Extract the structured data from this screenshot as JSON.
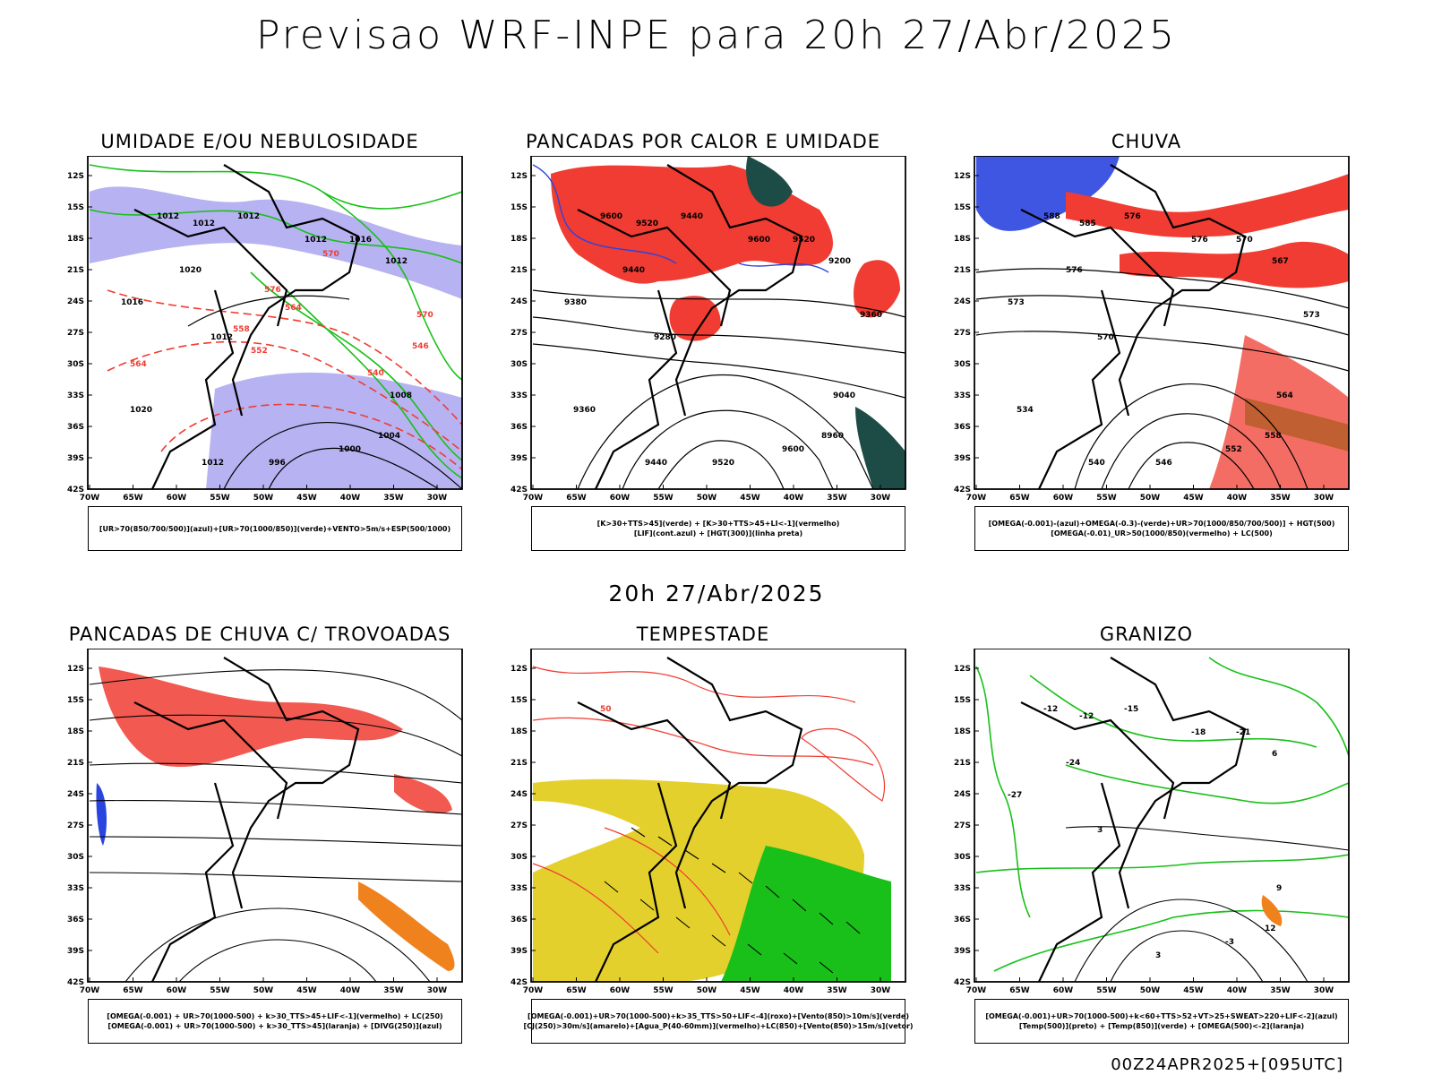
{
  "header": {
    "title": "Previsao WRF-INPE  para 20h 27/Abr/2025"
  },
  "middle": {
    "subtitle": "20h 27/Abr/2025"
  },
  "footer": {
    "run": "00Z24APR2025+[095UTC]"
  },
  "axes": {
    "lat": [
      "12S",
      "15S",
      "18S",
      "21S",
      "24S",
      "27S",
      "30S",
      "33S",
      "36S",
      "39S",
      "42S"
    ],
    "lon": [
      "70W",
      "65W",
      "60W",
      "55W",
      "50W",
      "45W",
      "40W",
      "35W",
      "30W"
    ]
  },
  "colors": {
    "blue": "#2a44e0",
    "green": "#19c019",
    "red": "#f03c32",
    "lavender": "#aaa4ee",
    "darkteal": "#1d4c47",
    "yellow": "#e4d02c",
    "orange": "#f0821e",
    "black": "#000000"
  },
  "panels": [
    {
      "id": "umidade",
      "title": "UMIDADE E/OU NEBULOSIDADE",
      "legend": [
        "[UR>70(850/700/500)](azul)+[UR>70(1000/850)](verde)+VENTO>5m/s+ESP(500/1000)"
      ],
      "labels": [
        "1012",
        "1012",
        "1012",
        "1012",
        "1016",
        "1020",
        "1016",
        "1012",
        "1012",
        "1008",
        "1004",
        "1000",
        "996",
        "1012",
        "1020",
        "570",
        "576",
        "564",
        "558",
        "552",
        "546",
        "540",
        "564",
        "570"
      ]
    },
    {
      "id": "pancadas-calor",
      "title": "PANCADAS POR CALOR E UMIDADE",
      "legend": [
        "[K>30+TTS>45](verde) + [K>30+TTS>45+LI<-1](vermelho)",
        "[LIF](cont.azul) + [HGT(300)](linha preta)"
      ],
      "labels": [
        "9600",
        "9520",
        "9440",
        "9600",
        "9520",
        "9440",
        "9380",
        "9280",
        "9200",
        "9040",
        "8960",
        "9600",
        "9520",
        "9440",
        "9360",
        "9360"
      ]
    },
    {
      "id": "chuva",
      "title": "CHUVA",
      "legend": [
        "[OMEGA(-0.001)-(azul)+OMEGA(-0.3)-(verde)+UR>70(1000/850/700/500)] + HGT(500)",
        "[OMEGA(-0.01)_UR>50(1000/850)(vermelho) + LC(500)"
      ],
      "labels": [
        "588",
        "585",
        "576",
        "576",
        "570",
        "576",
        "573",
        "570",
        "567",
        "564",
        "558",
        "552",
        "546",
        "540",
        "534",
        "573"
      ]
    },
    {
      "id": "trovoadas",
      "title": "PANCADAS DE CHUVA C/ TROVOADAS",
      "legend": [
        "[OMEGA(-0.001) + UR>70(1000-500) + k>30_TTS>45+LIF<-1](vermelho) + LC(250)",
        "[OMEGA(-0.001) + UR>70(1000-500) + k>30_TTS>45](laranja) + [DIVG(250)](azul)"
      ],
      "labels": []
    },
    {
      "id": "tempestade",
      "title": "TEMPESTADE",
      "legend": [
        "[OMEGA(-0.001)+UR>70(1000-500)+k>35_TTS>50+LIF<-4](roxo)+[Vento(850)>10m/s](verde)",
        "[CJ(250)>30m/s](amarelo)+[Agua_P(40-60mm)](vermelho)+LC(850)+[Vento(850)>15m/s](vetor)"
      ],
      "labels": [
        "50"
      ]
    },
    {
      "id": "granizo",
      "title": "GRANIZO",
      "legend": [
        "[OMEGA(-0.001)+UR>70(1000-500)+k<60+TTS>52+VT>25+SWEAT>220+LIF<-2](azul)",
        "[Temp(500)](preto) + [Temp(850)](verde) + [OMEGA(500)<-2](laranja)"
      ],
      "labels": [
        "-12",
        "-12",
        "-15",
        "-18",
        "-21",
        "-24",
        "-27",
        "3",
        "6",
        "9",
        "12",
        "-3",
        "3"
      ]
    }
  ]
}
